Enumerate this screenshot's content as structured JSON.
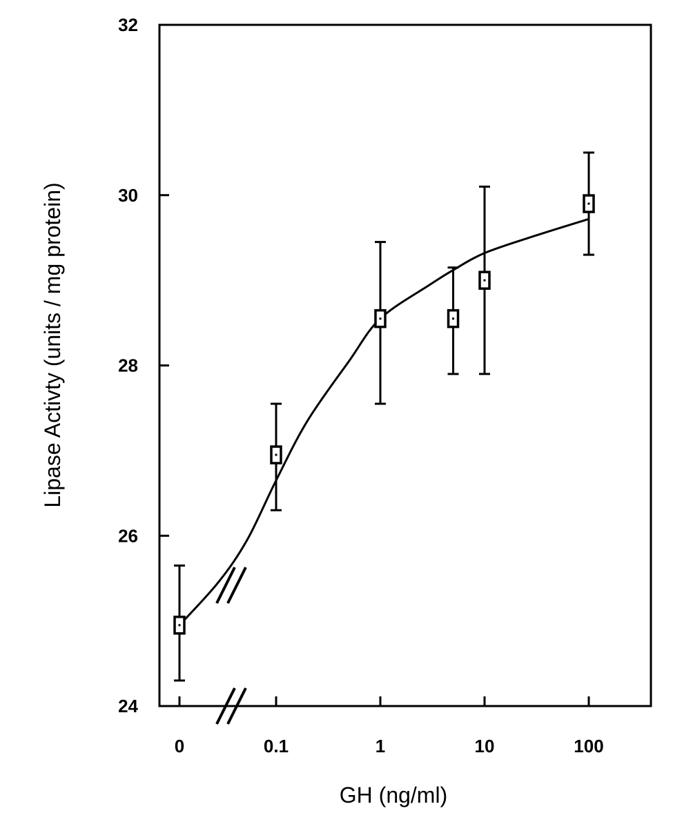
{
  "chart_data": {
    "type": "scatter",
    "title": "",
    "xlabel": "GH (ng/ml)",
    "ylabel": "Lipase Activty  (units / mg protein)",
    "x_scale": "log with axis break between 0 and 0.1",
    "x_tick_labels": [
      "0",
      "0.1",
      "1",
      "10",
      "100"
    ],
    "y_tick_labels": [
      "24",
      "26",
      "28",
      "30",
      "32"
    ],
    "ylim": [
      24,
      32
    ],
    "grid": false,
    "legend": "none",
    "marker": "open square with central dot",
    "error_bars": true,
    "points": [
      {
        "x": 0,
        "y": 24.95,
        "y_low": 24.3,
        "y_high": 25.65
      },
      {
        "x": 0.1,
        "y": 26.95,
        "y_low": 26.3,
        "y_high": 27.55
      },
      {
        "x": 1,
        "y": 28.55,
        "y_low": 27.55,
        "y_high": 29.45
      },
      {
        "x": 5,
        "y": 28.55,
        "y_low": 27.9,
        "y_high": 29.15
      },
      {
        "x": 10,
        "y": 29.0,
        "y_low": 27.9,
        "y_high": 30.1
      },
      {
        "x": 100,
        "y": 29.9,
        "y_low": 29.3,
        "y_high": 30.5
      }
    ],
    "fit_curve": {
      "x": [
        0,
        0.04,
        0.07,
        0.1,
        0.2,
        0.5,
        1,
        3,
        5,
        10,
        30,
        100
      ],
      "y": [
        24.95,
        25.45,
        25.95,
        26.65,
        27.35,
        28.05,
        28.55,
        28.95,
        29.12,
        29.32,
        29.52,
        29.72
      ]
    },
    "colors": {
      "line": "#000000",
      "background": "#ffffff"
    }
  }
}
